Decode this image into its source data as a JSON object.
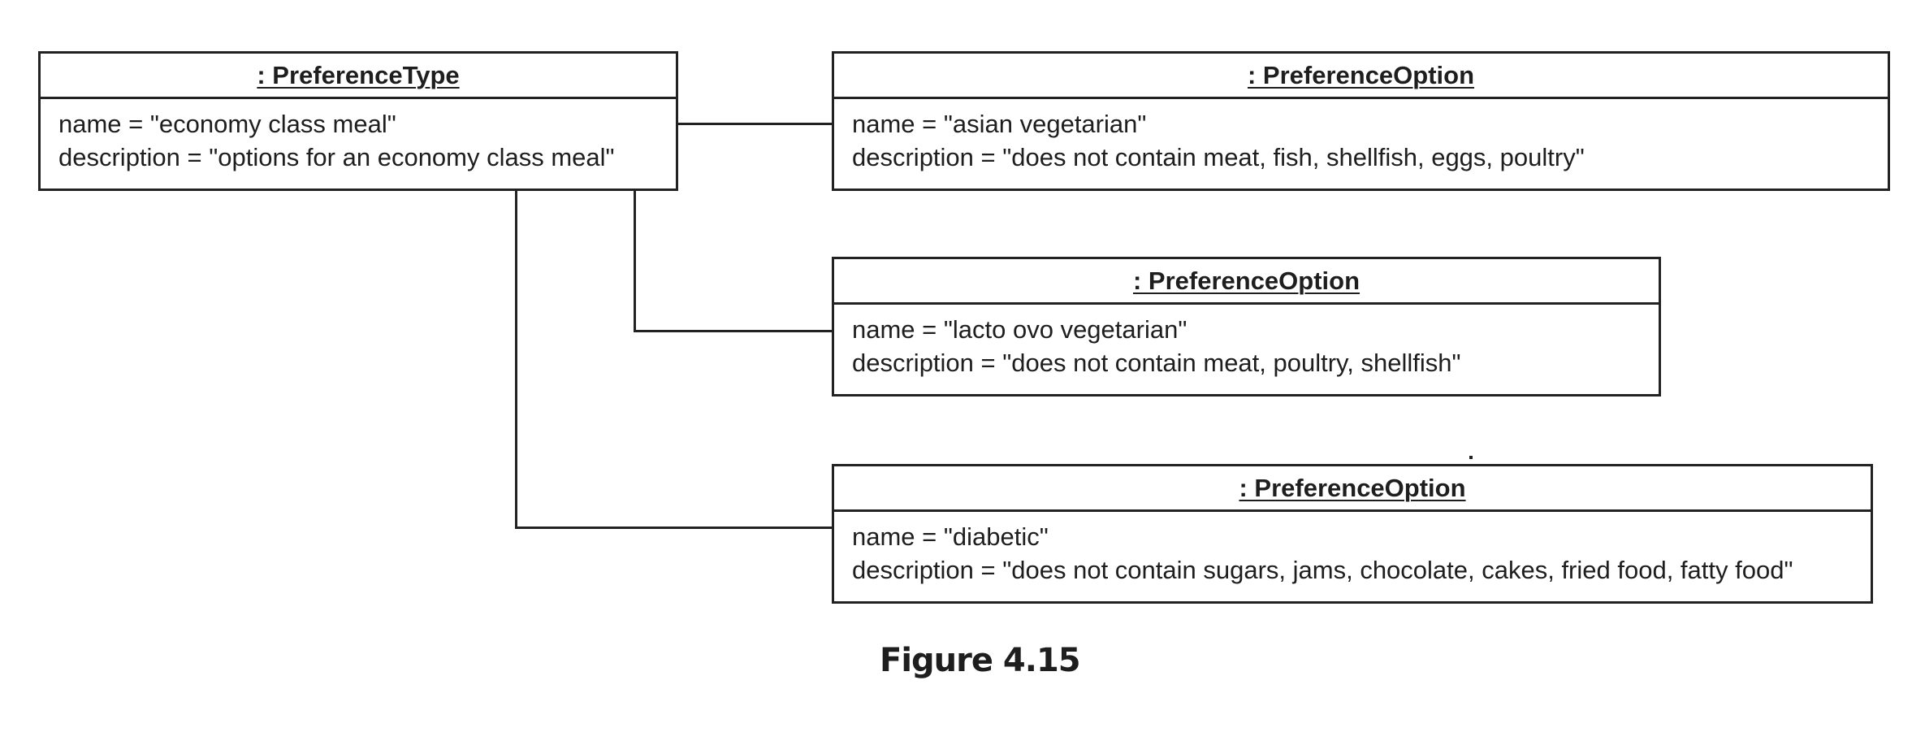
{
  "type_object": {
    "heading": ": PreferenceType",
    "name_line": "name = \"economy class meal\"",
    "description_line": "description = \"options for an economy class meal\""
  },
  "options": [
    {
      "heading": ": PreferenceOption",
      "name_line": "name = \"asian vegetarian\"",
      "description_line": "description = \"does not contain meat, fish, shellfish, eggs, poultry\""
    },
    {
      "heading": ": PreferenceOption",
      "name_line": "name = \"lacto ovo vegetarian\"",
      "description_line": "description = \"does not contain meat, poultry, shellfish\""
    },
    {
      "heading": ": PreferenceOption",
      "name_line": "name = \"diabetic\"",
      "description_line": "description = \"does not contain sugars, jams, chocolate, cakes, fried food, fatty food\""
    }
  ],
  "caption": "Figure 4.15"
}
